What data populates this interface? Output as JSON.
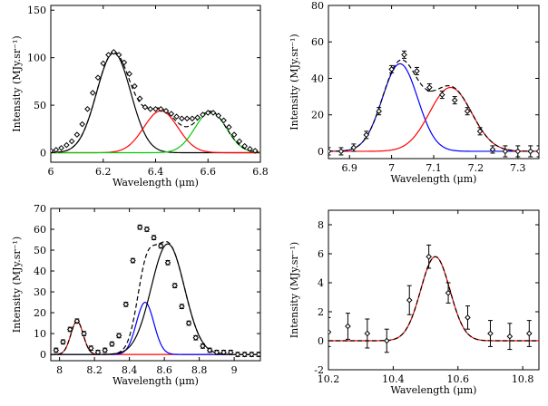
{
  "chart_data": [
    {
      "type": "line",
      "xlabel": "Wavelength (μm)",
      "ylabel": "Intensity (MJy.sr⁻¹)",
      "xlim": [
        6,
        6.8
      ],
      "ylim": [
        -10,
        155
      ],
      "xticks": [
        6,
        6.2,
        6.4,
        6.6,
        6.8
      ],
      "yticks": [
        0,
        50,
        100,
        150
      ],
      "series": [
        {
          "style": "points",
          "color": "#000000",
          "x": [
            6.0,
            6.02,
            6.04,
            6.06,
            6.08,
            6.1,
            6.12,
            6.14,
            6.16,
            6.18,
            6.2,
            6.22,
            6.24,
            6.26,
            6.28,
            6.3,
            6.32,
            6.34,
            6.36,
            6.38,
            6.4,
            6.42,
            6.44,
            6.46,
            6.48,
            6.5,
            6.52,
            6.54,
            6.56,
            6.58,
            6.6,
            6.62,
            6.64,
            6.66,
            6.68,
            6.7,
            6.72,
            6.74,
            6.76,
            6.78
          ],
          "y": [
            2,
            3,
            5,
            8,
            12,
            19,
            30,
            46,
            63,
            79,
            94,
            103,
            106,
            103,
            95,
            83,
            70,
            57,
            48,
            46,
            46,
            46,
            44,
            41,
            38,
            36,
            36,
            36,
            37,
            40,
            42,
            42,
            39,
            34,
            27,
            19,
            12,
            7,
            4,
            2
          ]
        },
        {
          "style": "gauss",
          "color": "#000000",
          "amp": 105,
          "center": 6.24,
          "sigma": 0.065
        },
        {
          "style": "gauss",
          "color": "#ff0000",
          "amp": 44,
          "center": 6.42,
          "sigma": 0.065
        },
        {
          "style": "gauss",
          "color": "#00cc00",
          "amp": 43,
          "center": 6.61,
          "sigma": 0.06
        },
        {
          "style": "gsum",
          "color": "#000000",
          "dashed": true,
          "components": [
            [
              105,
              6.24,
              0.065
            ],
            [
              44,
              6.42,
              0.065
            ],
            [
              43,
              6.61,
              0.06
            ]
          ]
        }
      ]
    },
    {
      "type": "line",
      "xlabel": "Wavelength (μm)",
      "ylabel": "Intensity (MJy.sr⁻¹)",
      "xlim": [
        6.85,
        7.35
      ],
      "ylim": [
        -4,
        80
      ],
      "xticks": [
        6.9,
        7,
        7.1,
        7.2,
        7.3
      ],
      "yticks": [
        0,
        20,
        40,
        60,
        80
      ],
      "series": [
        {
          "style": "points",
          "color": "#000000",
          "x": [
            6.85,
            6.88,
            6.91,
            6.94,
            6.97,
            7.0,
            7.03,
            7.06,
            7.09,
            7.12,
            7.15,
            7.18,
            7.21,
            7.24,
            7.27,
            7.3,
            7.33,
            7.35
          ],
          "y": [
            0,
            0,
            2,
            9,
            22,
            45,
            53,
            44,
            35,
            31,
            28,
            22,
            11,
            1,
            0,
            0,
            0,
            0
          ],
          "err": [
            2,
            2,
            2,
            2,
            2,
            2,
            2,
            2,
            2,
            2,
            2,
            2,
            2,
            2,
            3,
            3,
            3,
            3
          ]
        },
        {
          "style": "gauss",
          "color": "#0000ff",
          "amp": 48,
          "center": 7.02,
          "sigma": 0.042
        },
        {
          "style": "gauss",
          "color": "#ff0000",
          "amp": 35,
          "center": 7.14,
          "sigma": 0.05
        },
        {
          "style": "gsum",
          "color": "#000000",
          "dashed": true,
          "components": [
            [
              48,
              7.02,
              0.042
            ],
            [
              35,
              7.14,
              0.05
            ]
          ]
        }
      ]
    },
    {
      "type": "line",
      "xlabel": "Wavelength (μm)",
      "ylabel": "Intensity (MJy.sr⁻¹)",
      "xlim": [
        7.95,
        9.15
      ],
      "ylim": [
        -3,
        70
      ],
      "xticks": [
        8,
        8.2,
        8.4,
        8.6,
        8.8,
        9
      ],
      "yticks": [
        0,
        10,
        20,
        30,
        40,
        50,
        60,
        70
      ],
      "series": [
        {
          "style": "points",
          "color": "#000000",
          "x": [
            7.98,
            8.02,
            8.06,
            8.1,
            8.14,
            8.18,
            8.22,
            8.26,
            8.3,
            8.34,
            8.38,
            8.42,
            8.46,
            8.5,
            8.54,
            8.58,
            8.62,
            8.66,
            8.7,
            8.74,
            8.78,
            8.82,
            8.86,
            8.9,
            8.94,
            8.98,
            9.02,
            9.06,
            9.1,
            9.14
          ],
          "y": [
            2,
            6,
            12,
            16,
            10,
            3,
            1,
            2,
            5,
            9,
            24,
            45,
            61,
            60,
            56,
            52,
            44,
            33,
            23,
            15,
            8,
            4,
            2,
            1,
            1,
            1,
            0,
            0,
            0,
            0
          ],
          "err": [
            1,
            1,
            1,
            1,
            1,
            1,
            1,
            1,
            1,
            1,
            1,
            1,
            1,
            1,
            1,
            1,
            1,
            1,
            1,
            1,
            1,
            1,
            1,
            1,
            1,
            1,
            1,
            1,
            1,
            1
          ]
        },
        {
          "style": "gauss",
          "color": "#ff0000",
          "amp": 16,
          "center": 8.1,
          "sigma": 0.035
        },
        {
          "style": "gauss",
          "color": "#0000ff",
          "amp": 25,
          "center": 8.49,
          "sigma": 0.05
        },
        {
          "style": "gauss",
          "color": "#000000",
          "amp": 53,
          "center": 8.62,
          "sigma": 0.095
        },
        {
          "style": "gsum",
          "color": "#000000",
          "dashed": true,
          "components": [
            [
              16,
              8.1,
              0.035
            ],
            [
              25,
              8.49,
              0.05
            ],
            [
              53,
              8.62,
              0.095
            ]
          ]
        }
      ]
    },
    {
      "type": "line",
      "xlabel": "Wavelength (μm)",
      "ylabel": "Intensity (MJy.sr⁻¹)",
      "xlim": [
        10.2,
        10.85
      ],
      "ylim": [
        -2,
        9
      ],
      "xticks": [
        10.2,
        10.4,
        10.6,
        10.8
      ],
      "yticks": [
        -2,
        0,
        2,
        4,
        6,
        8
      ],
      "series": [
        {
          "style": "points",
          "color": "#000000",
          "x": [
            10.2,
            10.26,
            10.32,
            10.38,
            10.45,
            10.51,
            10.57,
            10.63,
            10.7,
            10.76,
            10.82
          ],
          "y": [
            0.6,
            1.0,
            0.5,
            0,
            2.8,
            5.8,
            3.3,
            1.6,
            0.5,
            0.3,
            0.5
          ],
          "err": [
            1.0,
            0.9,
            1.0,
            0.8,
            1.0,
            0.8,
            0.7,
            0.8,
            0.9,
            0.9,
            0.9
          ]
        },
        {
          "style": "gauss",
          "color": "#ff0000",
          "amp": 5.8,
          "center": 10.53,
          "sigma": 0.045
        },
        {
          "style": "gsum",
          "color": "#000000",
          "dashed": true,
          "components": [
            [
              5.8,
              10.53,
              0.045
            ]
          ]
        }
      ]
    }
  ]
}
